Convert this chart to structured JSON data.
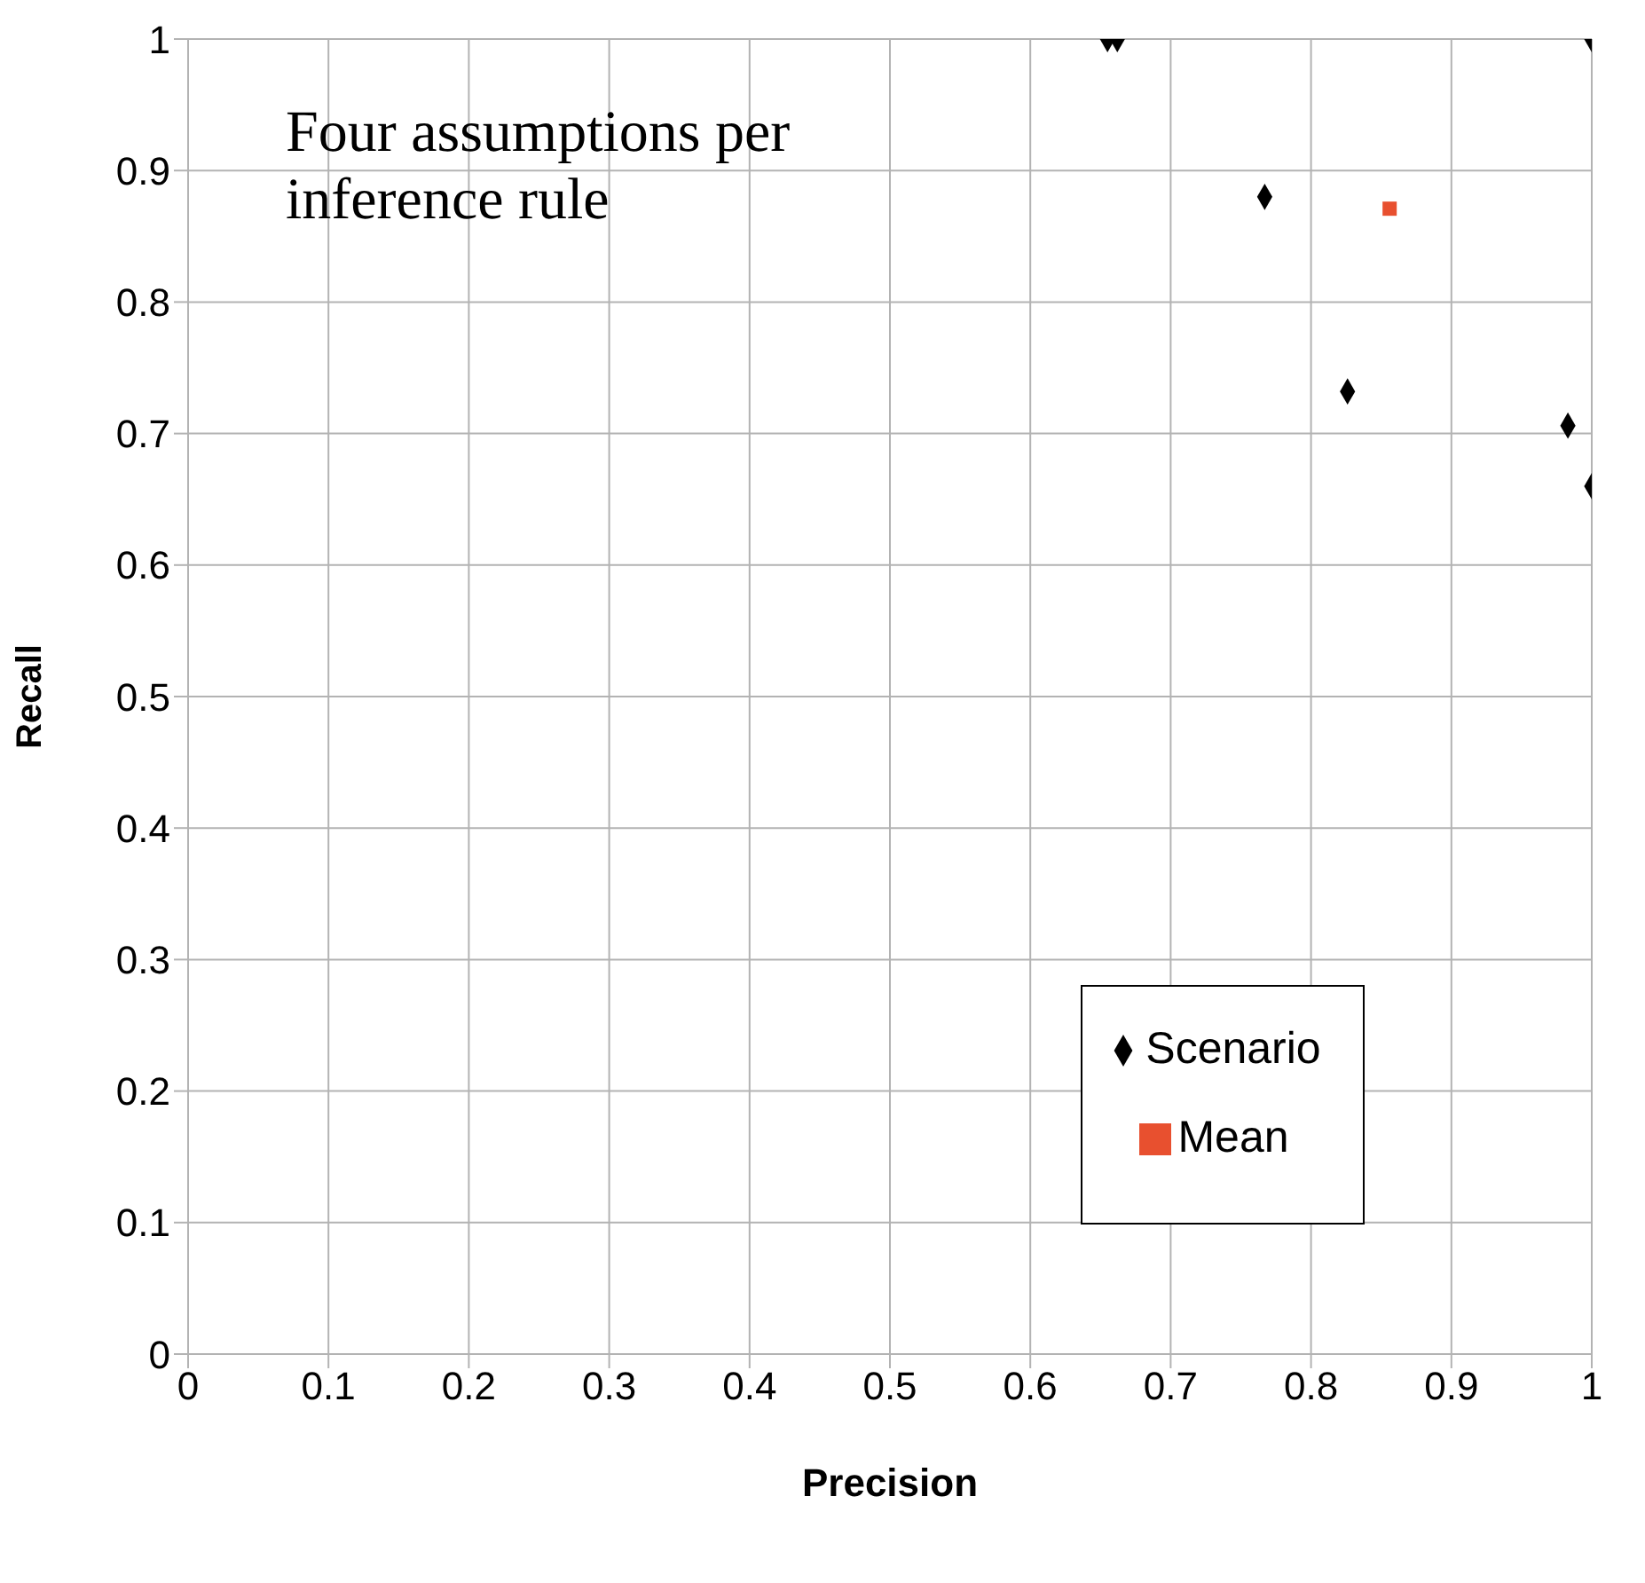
{
  "chart_data": {
    "type": "scatter",
    "xlabel": "Precision",
    "ylabel": "Recall",
    "annotations": [
      "Four assumptions per inference rule"
    ],
    "series": [
      {
        "name": "Scenario",
        "color": "#000000",
        "marker": "diamond",
        "x": [
          0.655,
          0.662,
          1,
          0.767,
          0.826,
          0.983,
          1
        ],
        "values": [
          1,
          1,
          1,
          0.88,
          0.732,
          0.706,
          0.66
        ]
      },
      {
        "name": "Mean",
        "color": "#e8502f",
        "marker": "square",
        "x": [
          0.856
        ],
        "values": [
          0.871
        ]
      }
    ],
    "xlim": [
      0,
      1
    ],
    "xticks": [
      0,
      0.1,
      0.2,
      0.3,
      0.4,
      0.5,
      0.6,
      0.7,
      0.8,
      0.9,
      1
    ],
    "ylim": [
      0,
      1
    ],
    "yticks": [
      0,
      0.1,
      0.2,
      0.3,
      0.4,
      0.5,
      0.6,
      0.7,
      0.8,
      0.9,
      1
    ],
    "grid": true,
    "legend": "bottom right"
  }
}
